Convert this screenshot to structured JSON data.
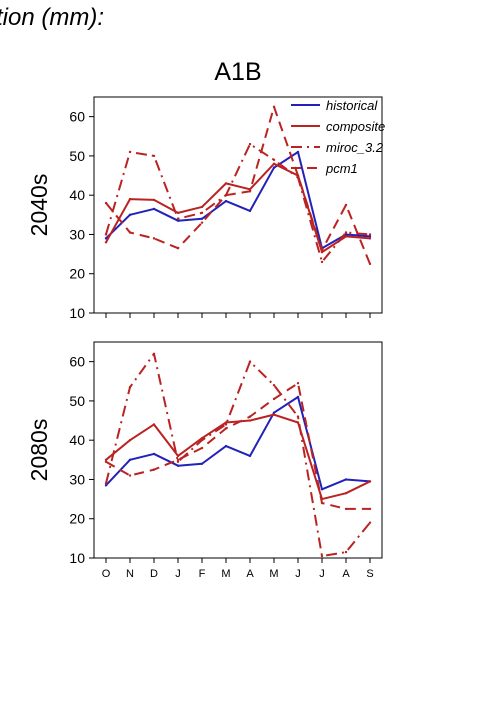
{
  "page": {
    "title": "tion (mm):"
  },
  "colors": {
    "historical": "#2222bb",
    "red": "#bb2222",
    "axis": "#000000"
  },
  "chart_data": [
    {
      "type": "line",
      "title": "A1B",
      "ylabel": "2040s",
      "xlabel": "",
      "categories": [
        "O",
        "N",
        "D",
        "J",
        "F",
        "M",
        "A",
        "M",
        "J",
        "J",
        "A",
        "S"
      ],
      "ylim": [
        10,
        65
      ],
      "yticks": [
        10,
        20,
        30,
        40,
        50,
        60
      ],
      "grid": false,
      "legend": "top-right",
      "series": [
        {
          "name": "historical",
          "style": "solid",
          "color": "#2222bb",
          "values": [
            29,
            35,
            36.5,
            33.5,
            34,
            38.5,
            36,
            47,
            51,
            26.5,
            30,
            29.5
          ]
        },
        {
          "name": "composite",
          "style": "solid",
          "color": "#bb2222",
          "values": [
            28,
            39,
            38.8,
            35.5,
            37,
            43,
            41.5,
            48,
            45,
            25.5,
            29.5,
            29
          ]
        },
        {
          "name": "miroc_3.2",
          "style": "dashdot",
          "color": "#bb2222",
          "values": [
            30,
            51,
            50,
            34,
            35.5,
            40,
            53,
            49,
            44.5,
            23,
            30.5,
            30
          ]
        },
        {
          "name": "pcm1",
          "style": "dashed",
          "color": "#bb2222",
          "values": [
            38,
            30.5,
            29,
            26.5,
            33,
            40,
            41,
            62.5,
            45,
            26,
            37.5,
            22.5
          ]
        }
      ]
    },
    {
      "type": "line",
      "title": "",
      "ylabel": "2080s",
      "xlabel": "",
      "categories": [
        "O",
        "N",
        "D",
        "J",
        "F",
        "M",
        "A",
        "M",
        "J",
        "J",
        "A",
        "S"
      ],
      "ylim": [
        10,
        65
      ],
      "yticks": [
        10,
        20,
        30,
        40,
        50,
        60
      ],
      "grid": false,
      "series": [
        {
          "name": "historical",
          "style": "solid",
          "color": "#2222bb",
          "values": [
            28.5,
            35,
            36.5,
            33.5,
            34,
            38.5,
            36,
            47,
            51,
            27.5,
            30,
            29.5
          ]
        },
        {
          "name": "composite",
          "style": "solid",
          "color": "#bb2222",
          "values": [
            35,
            40,
            44,
            36,
            40.5,
            44.5,
            45,
            46.5,
            44.5,
            25,
            26.5,
            29.5
          ]
        },
        {
          "name": "miroc_3.2",
          "style": "dashdot",
          "color": "#bb2222",
          "values": [
            29,
            53.5,
            62,
            34.5,
            40,
            44,
            60,
            54,
            46,
            10.5,
            11.5,
            19
          ]
        },
        {
          "name": "pcm1",
          "style": "dashed",
          "color": "#bb2222",
          "values": [
            34.5,
            31,
            32.5,
            35,
            38,
            43,
            46,
            50.5,
            54.5,
            24,
            22.5,
            22.5
          ]
        }
      ]
    }
  ]
}
